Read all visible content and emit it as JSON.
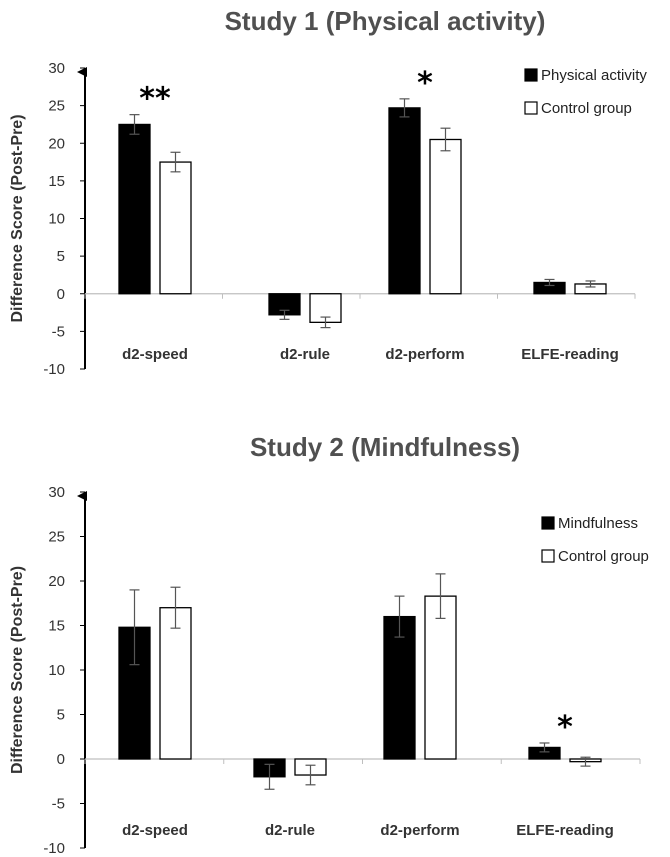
{
  "chart_data": [
    {
      "type": "bar",
      "title": "Study 1 (Physical activity)",
      "ylabel": "Difference Score (Post-Pre)",
      "ylim": [
        -10,
        30
      ],
      "yticks": [
        30,
        25,
        20,
        15,
        10,
        5,
        0,
        -5,
        -10
      ],
      "categories": [
        "d2-speed",
        "d2-rule",
        "d2-perform",
        "ELFE-reading"
      ],
      "series": [
        {
          "name": "Physical activity",
          "values": [
            22.5,
            -2.8,
            24.7,
            1.5
          ],
          "errors": [
            1.3,
            0.6,
            1.2,
            0.4
          ],
          "color": "#000000"
        },
        {
          "name": "Control group",
          "values": [
            17.5,
            -3.8,
            20.5,
            1.3
          ],
          "errors": [
            1.3,
            0.7,
            1.5,
            0.4
          ],
          "color": "#ffffff"
        }
      ],
      "annotations": [
        {
          "category": "d2-speed",
          "text": "**"
        },
        {
          "category": "d2-perform",
          "text": "*"
        }
      ],
      "legend": "top-right",
      "grid": false
    },
    {
      "type": "bar",
      "title": "Study 2 (Mindfulness)",
      "ylabel": "Difference Score (Post-Pre)",
      "ylim": [
        -10,
        30
      ],
      "yticks": [
        30,
        25,
        20,
        15,
        10,
        5,
        0,
        -5,
        -10
      ],
      "categories": [
        "d2-speed",
        "d2-rule",
        "d2-perform",
        "ELFE-reading"
      ],
      "series": [
        {
          "name": "Mindfulness",
          "values": [
            14.8,
            -2.0,
            16.0,
            1.3
          ],
          "errors": [
            4.2,
            1.4,
            2.3,
            0.5
          ],
          "color": "#000000"
        },
        {
          "name": "Control group",
          "values": [
            17.0,
            -1.8,
            18.3,
            -0.3
          ],
          "errors": [
            2.3,
            1.1,
            2.5,
            0.5
          ],
          "color": "#ffffff"
        }
      ],
      "annotations": [
        {
          "category": "ELFE-reading",
          "text": "*"
        }
      ],
      "legend": "top-right",
      "grid": false
    }
  ]
}
